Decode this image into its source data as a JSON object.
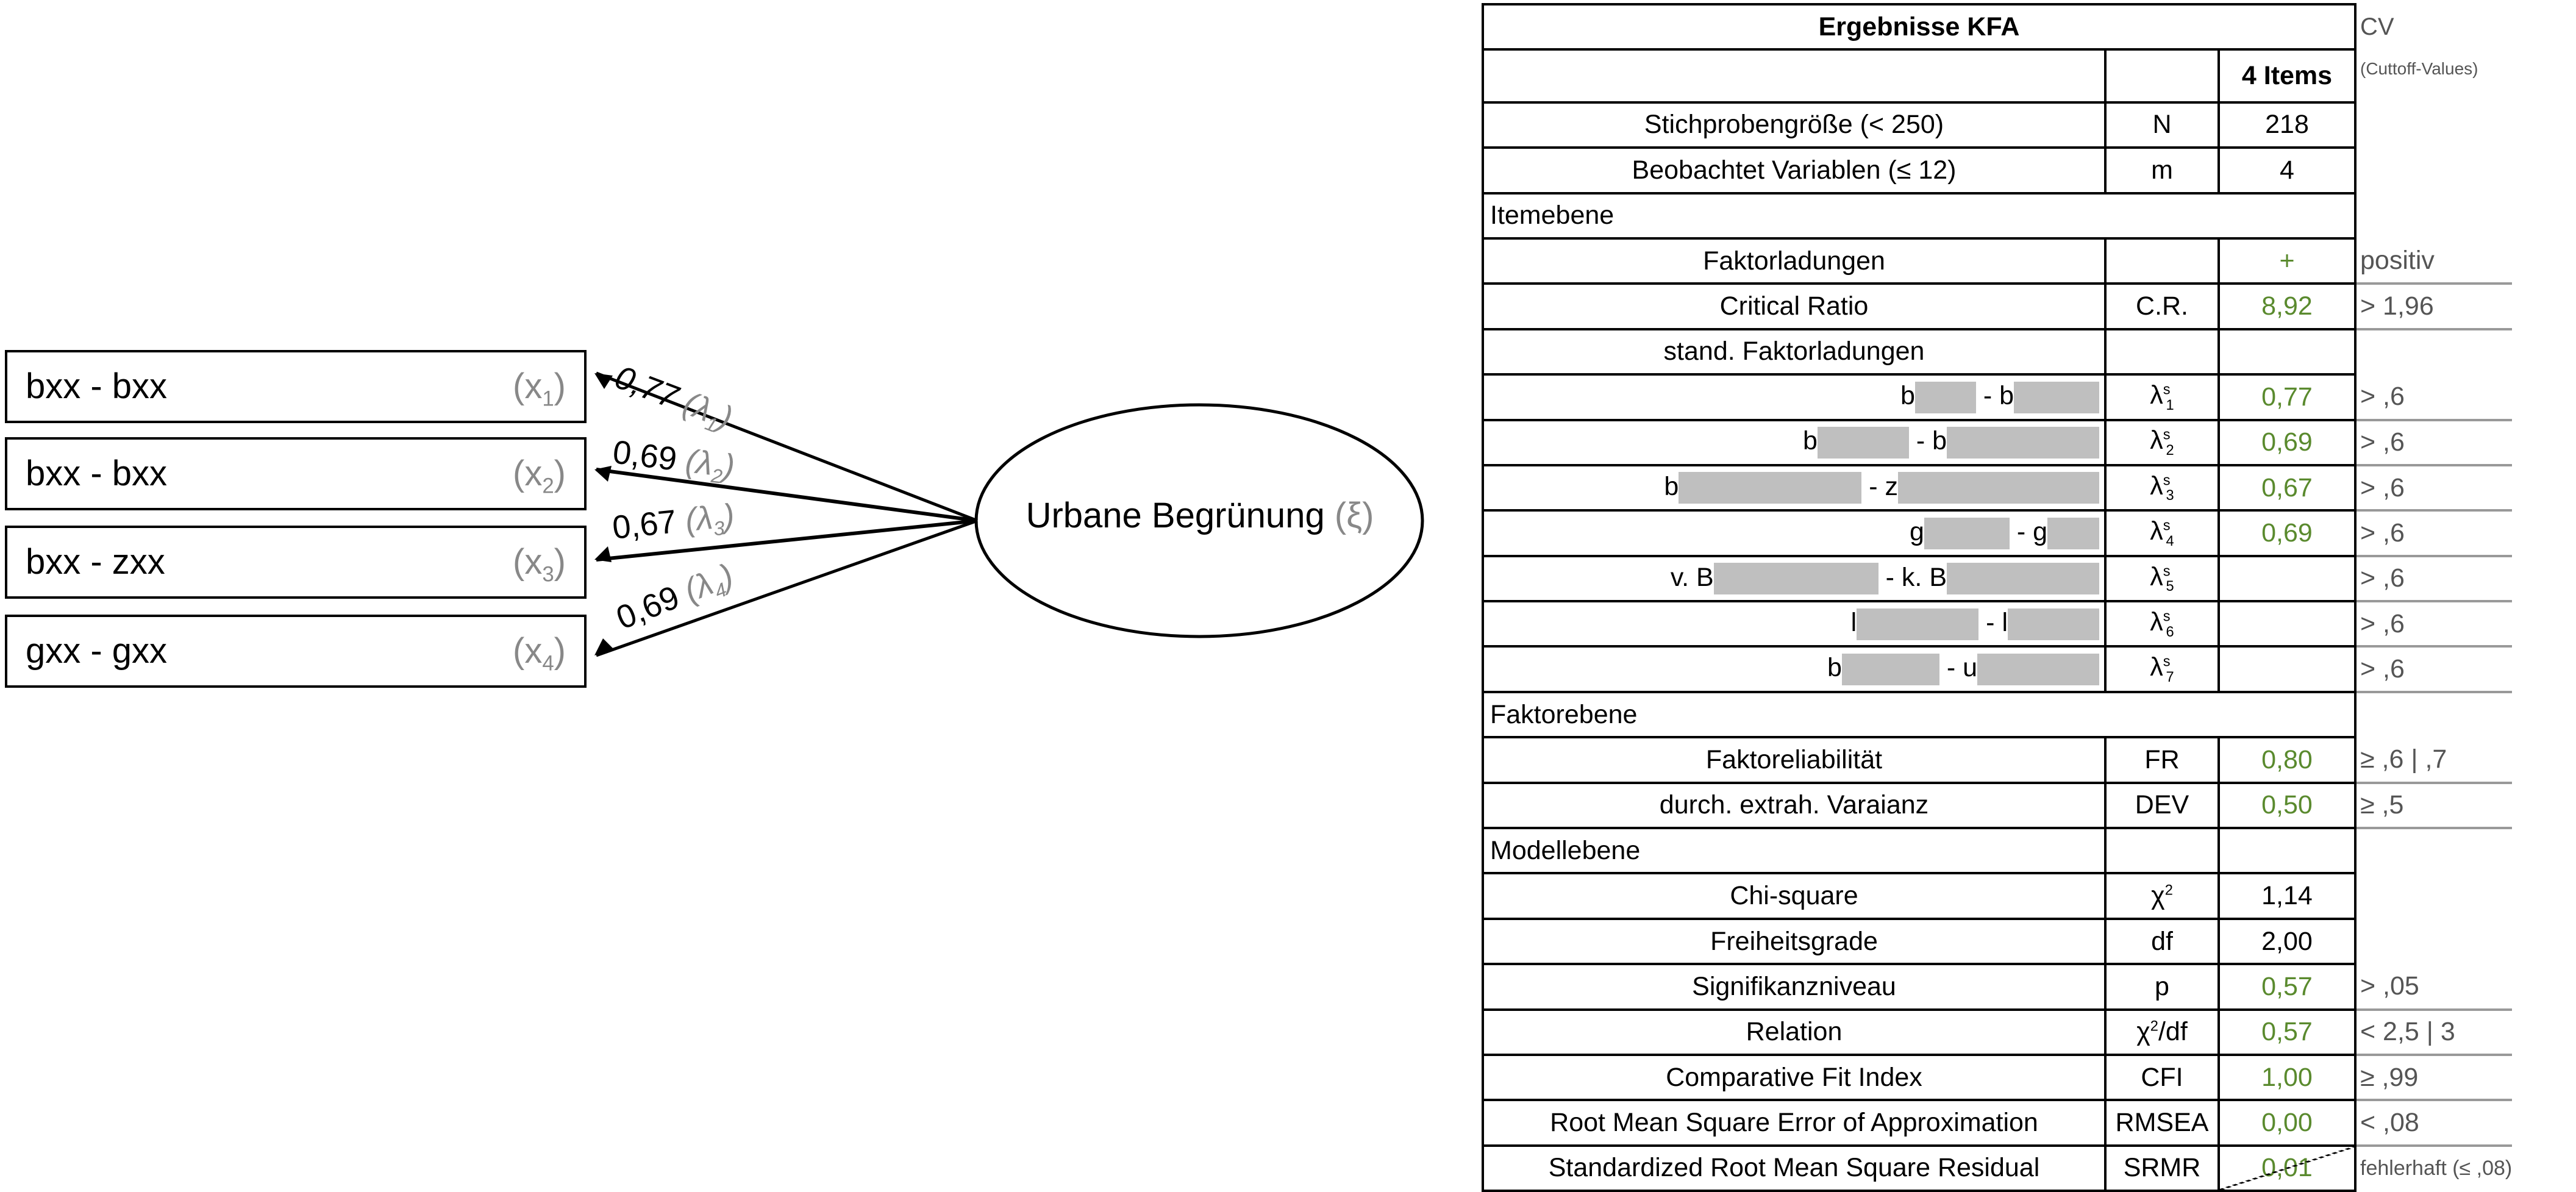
{
  "diagram": {
    "latent": {
      "label": "Urbane Begrünung",
      "symbol": "(ξ)"
    },
    "indicators": [
      {
        "label": "bxx - bxx",
        "var": "x",
        "index": "1",
        "loading": "0,77",
        "lambda": "λ",
        "lambda_index": "1"
      },
      {
        "label": "bxx - bxx",
        "var": "x",
        "index": "2",
        "loading": "0,69",
        "lambda": "λ",
        "lambda_index": "2"
      },
      {
        "label": "bxx - zxx",
        "var": "x",
        "index": "3",
        "loading": "0,67",
        "lambda": "λ",
        "lambda_index": "3"
      },
      {
        "label": "gxx - gxx",
        "var": "x",
        "index": "4",
        "loading": "0,69",
        "lambda": "λ",
        "lambda_index": "4"
      }
    ]
  },
  "table": {
    "title": "Ergebnisse KFA",
    "cv_header": "CV",
    "cv_subheader": "(Cuttoff-Values)",
    "column_header": "4 Items",
    "rows_top": [
      {
        "label": "Stichprobengröße (< 250)",
        "symbol": "N",
        "value": "218"
      },
      {
        "label": "Beobachtet Variablen (≤ 12)",
        "symbol": "m",
        "value": "4"
      }
    ],
    "section_item": "Itemebene",
    "faktorladungen": {
      "label": "Faktorladungen",
      "value": "+",
      "cv": "positiv"
    },
    "critical_ratio": {
      "label": "Critical Ratio",
      "symbol": "C.R.",
      "value": "8,92",
      "cv": "> 1,96"
    },
    "stand_label": "stand. Faktorladungen",
    "loadings": [
      {
        "pre1": "b",
        "pre2": "- b",
        "sym": "λ",
        "sup": "s",
        "sub": "1",
        "value": "0,77",
        "cv": "> ,6"
      },
      {
        "pre1": "b",
        "pre2": "- b",
        "sym": "λ",
        "sup": "s",
        "sub": "2",
        "value": "0,69",
        "cv": "> ,6"
      },
      {
        "pre1": "b",
        "pre2": "- z",
        "sym": "λ",
        "sup": "s",
        "sub": "3",
        "value": "0,67",
        "cv": "> ,6"
      },
      {
        "pre1": "g",
        "pre2": "- g",
        "sym": "λ",
        "sup": "s",
        "sub": "4",
        "value": "0,69",
        "cv": "> ,6"
      },
      {
        "pre1": "v. B",
        "pre2": "- k. B",
        "sym": "λ",
        "sup": "s",
        "sub": "5",
        "value": "",
        "cv": "> ,6"
      },
      {
        "pre1": "l",
        "pre2": "- l",
        "sym": "λ",
        "sup": "s",
        "sub": "6",
        "value": "",
        "cv": "> ,6"
      },
      {
        "pre1": "b",
        "pre2": "- u",
        "sym": "λ",
        "sup": "s",
        "sub": "7",
        "value": "",
        "cv": "> ,6"
      }
    ],
    "section_factor": "Faktorebene",
    "factor_rows": [
      {
        "label": "Faktoreliabilität",
        "symbol": "FR",
        "value": "0,80",
        "cv": "≥ ,6 | ,7"
      },
      {
        "label": "durch. extrah. Varaianz",
        "symbol": "DEV",
        "value": "0,50",
        "cv": "≥ ,5"
      }
    ],
    "section_model": "Modellebene",
    "chi": {
      "label": "Chi-square",
      "symbol": "χ",
      "sup": "2",
      "value": "1,14"
    },
    "df": {
      "label": "Freiheitsgrade",
      "symbol": "df",
      "value": "2,00"
    },
    "p": {
      "label": "Signifikanzniveau",
      "symbol": "p",
      "value": "0,57",
      "cv": "> ,05"
    },
    "relation": {
      "label": "Relation",
      "symbol": "χ",
      "sup": "2",
      "symbol_tail": "/df",
      "value": "0,57",
      "cv": "< 2,5 | 3"
    },
    "cfi": {
      "label": "Comparative Fit Index",
      "symbol": "CFI",
      "value": "1,00",
      "cv": "≥ ,99"
    },
    "rmsea": {
      "label": "Root Mean Square Error of Approximation",
      "symbol": "RMSEA",
      "value": "0,00",
      "cv": "< ,08"
    },
    "srmr": {
      "label": "Standardized Root Mean Square Residual",
      "symbol": "SRMR",
      "value": "0,01",
      "cv": "fehlerhaft (≤ ,08)"
    }
  },
  "colors": {
    "good": "#5a8a2e",
    "muted": "#888888",
    "redaction": "#bfbfbf"
  }
}
